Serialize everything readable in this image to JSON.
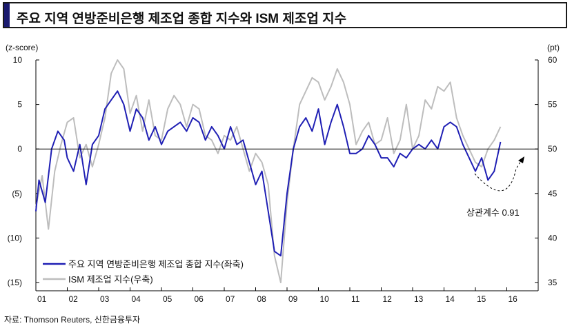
{
  "title": "주요 지역 연방준비은행 제조업 종합 지수와 ISM 제조업 지수",
  "source": "자료: Thomson Reuters, 신한금융투자",
  "chart_data": {
    "type": "line",
    "left_unit": "(z-score)",
    "right_unit": "(pt)",
    "left_axis": {
      "min": -15,
      "max": 10,
      "ticks": [
        10,
        5,
        0,
        -5,
        -10,
        -15
      ],
      "tick_labels": [
        "10",
        "5",
        "0",
        "(5)",
        "(10)",
        "(15)"
      ]
    },
    "right_axis": {
      "min": 35,
      "max": 60,
      "ticks": [
        60,
        55,
        50,
        45,
        40,
        35
      ],
      "tick_labels": [
        "60",
        "55",
        "50",
        "45",
        "40",
        "35"
      ]
    },
    "x_axis": {
      "min": 2001.0,
      "max": 2017.0,
      "ticks": [
        2001,
        2002,
        2003,
        2004,
        2005,
        2006,
        2007,
        2008,
        2009,
        2010,
        2011,
        2012,
        2013,
        2014,
        2015,
        2016
      ],
      "tick_labels": [
        "01",
        "02",
        "03",
        "04",
        "05",
        "06",
        "07",
        "08",
        "09",
        "10",
        "11",
        "12",
        "13",
        "14",
        "15",
        "16"
      ]
    },
    "legend_position": "bottom-left",
    "annotation": "상관계수 0.91",
    "series": [
      {
        "name": "주요 지역 연방준비은행 제조업 종합 지수(좌축)",
        "axis": "left",
        "color": "#1f1fb4",
        "x": [
          2001.0,
          2001.1,
          2001.3,
          2001.5,
          2001.7,
          2001.9,
          2002.0,
          2002.2,
          2002.4,
          2002.6,
          2002.8,
          2003.0,
          2003.2,
          2003.4,
          2003.6,
          2003.8,
          2004.0,
          2004.2,
          2004.4,
          2004.6,
          2004.8,
          2005.0,
          2005.2,
          2005.4,
          2005.6,
          2005.8,
          2006.0,
          2006.2,
          2006.4,
          2006.6,
          2006.8,
          2007.0,
          2007.2,
          2007.4,
          2007.6,
          2007.8,
          2008.0,
          2008.2,
          2008.4,
          2008.6,
          2008.8,
          2009.0,
          2009.2,
          2009.4,
          2009.6,
          2009.8,
          2010.0,
          2010.2,
          2010.4,
          2010.6,
          2010.8,
          2011.0,
          2011.2,
          2011.4,
          2011.6,
          2011.8,
          2012.0,
          2012.2,
          2012.4,
          2012.6,
          2012.8,
          2013.0,
          2013.2,
          2013.4,
          2013.6,
          2013.8,
          2014.0,
          2014.2,
          2014.4,
          2014.6,
          2014.8,
          2015.0,
          2015.2,
          2015.4,
          2015.6,
          2015.8
        ],
        "values": [
          -7.0,
          -3.5,
          -6.0,
          0.0,
          2.0,
          1.0,
          -1.0,
          -2.5,
          0.5,
          -4.0,
          0.5,
          1.5,
          4.5,
          5.5,
          6.5,
          5.0,
          2.0,
          4.5,
          3.5,
          1.0,
          2.5,
          0.5,
          2.0,
          2.5,
          3.0,
          2.0,
          3.5,
          3.0,
          1.0,
          2.5,
          1.5,
          0.0,
          2.5,
          0.5,
          1.0,
          -1.5,
          -4.0,
          -2.5,
          -7.0,
          -11.5,
          -12.0,
          -5.0,
          0.0,
          2.5,
          3.5,
          2.0,
          4.5,
          0.5,
          3.0,
          5.0,
          2.5,
          -0.5,
          -0.5,
          0.0,
          1.5,
          0.5,
          -1.0,
          -1.0,
          -2.0,
          -0.5,
          -1.0,
          0.0,
          0.5,
          0.0,
          1.0,
          0.0,
          2.5,
          3.0,
          2.5,
          0.5,
          -1.0,
          -2.5,
          -1.0,
          -3.5,
          -2.5,
          0.8
        ]
      },
      {
        "name": "ISM 제조업 지수(우축)",
        "axis": "right",
        "color": "#bdbdbd",
        "x": [
          2001.0,
          2001.2,
          2001.4,
          2001.6,
          2001.8,
          2002.0,
          2002.2,
          2002.4,
          2002.6,
          2002.8,
          2003.0,
          2003.2,
          2003.4,
          2003.6,
          2003.8,
          2004.0,
          2004.2,
          2004.4,
          2004.6,
          2004.8,
          2005.0,
          2005.2,
          2005.4,
          2005.6,
          2005.8,
          2006.0,
          2006.2,
          2006.4,
          2006.6,
          2006.8,
          2007.0,
          2007.2,
          2007.4,
          2007.6,
          2007.8,
          2008.0,
          2008.2,
          2008.4,
          2008.6,
          2008.8,
          2009.0,
          2009.2,
          2009.4,
          2009.6,
          2009.8,
          2010.0,
          2010.2,
          2010.4,
          2010.6,
          2010.8,
          2011.0,
          2011.2,
          2011.4,
          2011.6,
          2011.8,
          2012.0,
          2012.2,
          2012.4,
          2012.6,
          2012.8,
          2013.0,
          2013.2,
          2013.4,
          2013.6,
          2013.8,
          2014.0,
          2014.2,
          2014.4,
          2014.6,
          2014.8,
          2015.0,
          2015.2,
          2015.4,
          2015.6,
          2015.8
        ],
        "values": [
          43.5,
          47.0,
          41.0,
          47.5,
          50.5,
          53.0,
          53.5,
          49.0,
          50.5,
          48.0,
          50.5,
          53.5,
          58.5,
          60.5,
          59.0,
          54.0,
          56.0,
          52.0,
          55.5,
          51.5,
          51.0,
          54.5,
          56.0,
          55.0,
          52.5,
          55.0,
          54.5,
          51.5,
          51.0,
          49.5,
          51.5,
          51.0,
          52.5,
          50.0,
          47.5,
          49.5,
          48.5,
          46.0,
          38.0,
          33.5,
          44.0,
          50.0,
          55.0,
          56.5,
          58.0,
          57.5,
          55.5,
          57.0,
          59.0,
          57.5,
          55.0,
          50.5,
          52.0,
          53.0,
          50.5,
          51.0,
          53.5,
          49.5,
          51.0,
          55.0,
          50.0,
          51.5,
          55.5,
          54.5,
          57.0,
          56.5,
          57.5,
          53.5,
          51.5,
          50.0,
          48.5,
          48.0,
          50.0,
          51.0,
          52.5
        ]
      }
    ]
  }
}
